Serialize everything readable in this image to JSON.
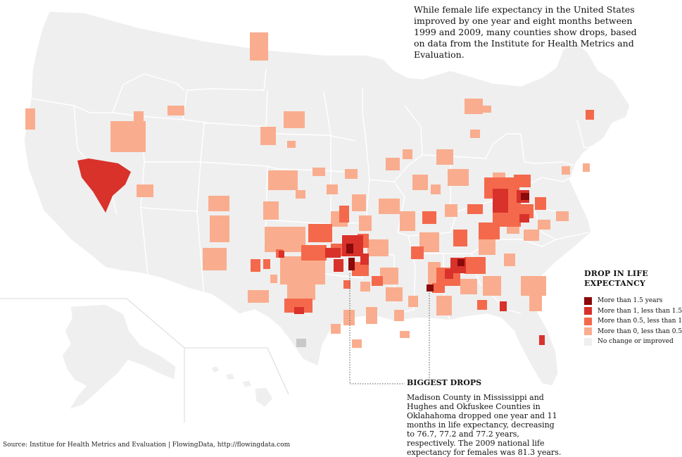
{
  "intro_text": "While female life expectancy in the United States improved by one year and eight months between 1999 and 2009, many counties show drops, based on data from the Institute for Health Metrics and Evaluation.",
  "legend": {
    "title": "DROP IN LIFE EXPECTANCY",
    "items": [
      {
        "label": "More than 1.5 years",
        "color": "#8b0a0a"
      },
      {
        "label": "More than 1, less than 1.5",
        "color": "#d8322b"
      },
      {
        "label": "More than 0.5, less than 1",
        "color": "#f4694c"
      },
      {
        "label": "More than 0, less than 0.5",
        "color": "#f9ad8e"
      },
      {
        "label": "No change or improved",
        "color": "#efefef"
      }
    ]
  },
  "callout": {
    "title": "BIGGEST DROPS",
    "body": "Madison County in Mississippi and Hughes and Okfuskee Counties in Oklahahoma dropped one year and 11 months in life expectancy, decreasing to 76.7, 77.2 and 77.2 years, respectively. The 2009 national life expectancy for females was 81.3 years."
  },
  "source": "Source: Institue for Health Metrics and Evaluation | FlowingData, http://flowingdata.com",
  "colors": {
    "land": "#efefef",
    "state_border": "#ffffff",
    "leader_line": "#555555",
    "no_data": "#c8c8c8"
  }
}
